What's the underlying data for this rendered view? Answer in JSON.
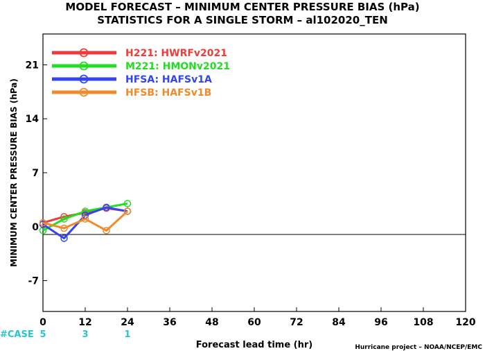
{
  "chart_data": {
    "type": "line",
    "title": "MODEL FORECAST – MINIMUM CENTER PRESSURE BIAS (hPa)",
    "subtitle": "STATISTICS FOR A SINGLE STORM – al102020_TEN",
    "xlabel": "Forecast lead time (hr)",
    "ylabel": "MINIMUM CENTER PRESSURE BIAS (hPa)",
    "xlim": [
      0,
      120
    ],
    "ylim": [
      -11,
      25
    ],
    "xticks": [
      "0",
      "12",
      "24",
      "36",
      "48",
      "60",
      "72",
      "84",
      "96",
      "108",
      "120"
    ],
    "yticks": [
      "21",
      "14",
      "7",
      "0",
      "-7"
    ],
    "x": [
      0,
      6,
      12,
      18,
      24
    ],
    "series": [
      {
        "name": "H221: HWRFv2021",
        "color": "#ee3b3b",
        "values": [
          0.5,
          1.3,
          1.8,
          2.4,
          2.0
        ]
      },
      {
        "name": "M221: HMONv2021",
        "color": "#22dd22",
        "values": [
          -0.5,
          1.0,
          2.0,
          2.5,
          3.0
        ]
      },
      {
        "name": "HFSA: HAFSv1A",
        "color": "#3344ee",
        "values": [
          0.3,
          -1.5,
          1.5,
          2.5,
          2.0
        ]
      },
      {
        "name": "HFSB: HAFSv1B",
        "color": "#f08a2a",
        "values": [
          0.5,
          -0.2,
          1.0,
          -0.5,
          2.0
        ]
      }
    ],
    "cases": {
      "label": "#CASE",
      "x": [
        0,
        12,
        24
      ],
      "counts": [
        "5",
        "3",
        "1"
      ],
      "color": "#26c6d0"
    },
    "legend_position": "top-left",
    "grid": false
  },
  "credit": "Hurricane project – NOAA/NCEP/EMC"
}
